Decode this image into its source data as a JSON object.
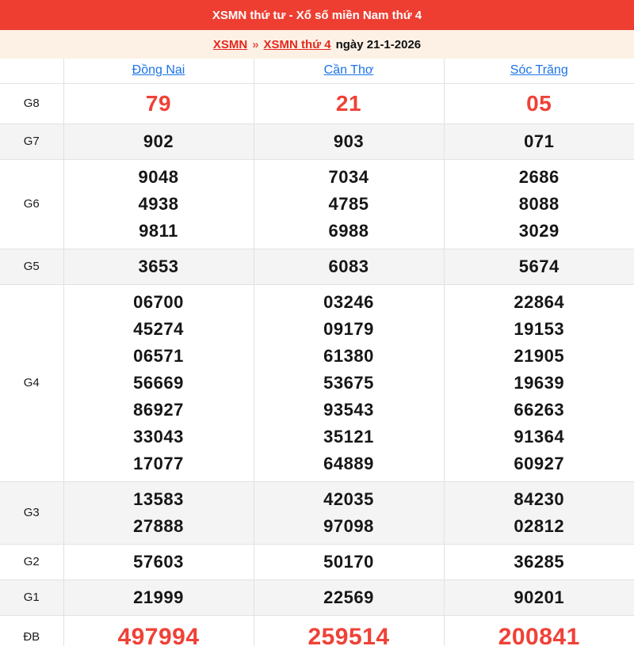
{
  "header": {
    "title": "XSMN thứ tư - Xổ số miền Nam thứ 4"
  },
  "breadcrumb": {
    "links": [
      {
        "label": "XSMN"
      },
      {
        "label": "XSMN thứ 4"
      }
    ],
    "separator": "»",
    "date_text": "ngày 21-1-2026"
  },
  "table": {
    "provinces": [
      "Đồng Nai",
      "Cần Thơ",
      "Sóc Trăng"
    ],
    "rows": [
      {
        "key": "g8",
        "prize": "G8",
        "values": [
          [
            "79"
          ],
          [
            "21"
          ],
          [
            "05"
          ]
        ]
      },
      {
        "key": "g7",
        "prize": "G7",
        "values": [
          [
            "902"
          ],
          [
            "903"
          ],
          [
            "071"
          ]
        ]
      },
      {
        "key": "g6",
        "prize": "G6",
        "values": [
          [
            "9048",
            "4938",
            "9811"
          ],
          [
            "7034",
            "4785",
            "6988"
          ],
          [
            "2686",
            "8088",
            "3029"
          ]
        ]
      },
      {
        "key": "g5",
        "prize": "G5",
        "values": [
          [
            "3653"
          ],
          [
            "6083"
          ],
          [
            "5674"
          ]
        ]
      },
      {
        "key": "g4",
        "prize": "G4",
        "values": [
          [
            "06700",
            "45274",
            "06571",
            "56669",
            "86927",
            "33043",
            "17077"
          ],
          [
            "03246",
            "09179",
            "61380",
            "53675",
            "93543",
            "35121",
            "64889"
          ],
          [
            "22864",
            "19153",
            "21905",
            "19639",
            "66263",
            "91364",
            "60927"
          ]
        ]
      },
      {
        "key": "g3",
        "prize": "G3",
        "values": [
          [
            "13583",
            "27888"
          ],
          [
            "42035",
            "97098"
          ],
          [
            "84230",
            "02812"
          ]
        ]
      },
      {
        "key": "g2",
        "prize": "G2",
        "values": [
          [
            "57603"
          ],
          [
            "50170"
          ],
          [
            "36285"
          ]
        ]
      },
      {
        "key": "g1",
        "prize": "G1",
        "values": [
          [
            "21999"
          ],
          [
            "22569"
          ],
          [
            "90201"
          ]
        ]
      },
      {
        "key": "db",
        "prize": "ĐB",
        "values": [
          [
            "497994"
          ],
          [
            "259514"
          ],
          [
            "200841"
          ]
        ]
      }
    ]
  },
  "colors": {
    "accent_red": "#ee3e32",
    "number_red": "#f04137",
    "link_blue": "#1a73e8",
    "breadcrumb_bg": "#fdf1e6",
    "alt_row_bg": "#f4f4f4"
  }
}
